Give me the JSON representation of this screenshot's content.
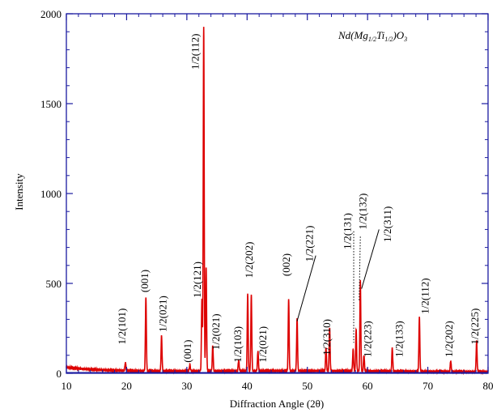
{
  "chart_data": {
    "type": "line",
    "title": "",
    "xlabel": "Diffraction Angle (2θ)",
    "ylabel": "Intensity",
    "xlim": [
      10,
      80
    ],
    "ylim": [
      0,
      2000
    ],
    "xticks": [
      10,
      20,
      30,
      40,
      50,
      60,
      70,
      80
    ],
    "yticks": [
      0,
      500,
      1000,
      1500,
      2000
    ],
    "grid": false,
    "legend": "none",
    "colors": {
      "pattern": "#dd0000",
      "baseline": "#1a1aa0",
      "axes": "#1a1aa0"
    },
    "annotation": {
      "formula": {
        "base1": "Nd(Mg",
        "sub1": "1/2",
        "base2": "Ti",
        "sub2": "1/2",
        "base3": ")O",
        "sub3": "3"
      }
    },
    "peaks": [
      {
        "x": 19.8,
        "y": 45
      },
      {
        "x": 23.2,
        "y": 410
      },
      {
        "x": 25.8,
        "y": 195
      },
      {
        "x": 30.5,
        "y": 35
      },
      {
        "x": 32.5,
        "y": 400
      },
      {
        "x": 32.8,
        "y": 1920
      },
      {
        "x": 33.2,
        "y": 575
      },
      {
        "x": 34.3,
        "y": 140
      },
      {
        "x": 38.6,
        "y": 60
      },
      {
        "x": 40.1,
        "y": 430
      },
      {
        "x": 40.7,
        "y": 420
      },
      {
        "x": 41.8,
        "y": 110
      },
      {
        "x": 46.9,
        "y": 400
      },
      {
        "x": 48.3,
        "y": 290
      },
      {
        "x": 53.1,
        "y": 130
      },
      {
        "x": 53.7,
        "y": 240
      },
      {
        "x": 57.6,
        "y": 120
      },
      {
        "x": 58.1,
        "y": 230
      },
      {
        "x": 58.8,
        "y": 500
      },
      {
        "x": 59.4,
        "y": 90
      },
      {
        "x": 64.1,
        "y": 130
      },
      {
        "x": 68.6,
        "y": 300
      },
      {
        "x": 73.8,
        "y": 60
      },
      {
        "x": 78.1,
        "y": 170
      }
    ],
    "labels": [
      {
        "text": "1/2(101)",
        "x": 19.4,
        "y": 160
      },
      {
        "text": "(001)",
        "x": 23.2,
        "y": 450
      },
      {
        "text": "1/2(021)",
        "x": 26.2,
        "y": 230
      },
      {
        "text": "(001)",
        "x": 30.3,
        "y": 60
      },
      {
        "text": "1/2(121)",
        "x": 31.9,
        "y": 420
      },
      {
        "text": "1/2(112)",
        "x": 31.6,
        "y": 1690
      },
      {
        "text": "1/2(021)",
        "x": 35.0,
        "y": 130
      },
      {
        "text": "1/2(103)",
        "x": 38.6,
        "y": 60
      },
      {
        "text": "1/2(202)",
        "x": 40.5,
        "y": 530
      },
      {
        "text": "1/2(021)",
        "x": 42.8,
        "y": 60
      },
      {
        "text": "(002)",
        "x": 46.7,
        "y": 540
      },
      {
        "text": "1/2(221)",
        "x": 50.5,
        "y": 620
      },
      {
        "text": "1/2(310)",
        "x": 53.4,
        "y": 100
      },
      {
        "text": "1/2(131)",
        "x": 56.8,
        "y": 690
      },
      {
        "text": "1/2(132)",
        "x": 59.4,
        "y": 800
      },
      {
        "text": "1/2(223)",
        "x": 60.2,
        "y": 90
      },
      {
        "text": "1/2(311)",
        "x": 63.5,
        "y": 730
      },
      {
        "text": "1/2(133)",
        "x": 65.4,
        "y": 90
      },
      {
        "text": "1/2(112)",
        "x": 69.7,
        "y": 330
      },
      {
        "text": "1/2(202)",
        "x": 73.7,
        "y": 90
      },
      {
        "text": "1/2(225)",
        "x": 78.0,
        "y": 160
      }
    ],
    "leader_lines": [
      {
        "from": [
          51.4,
          655
        ],
        "to": [
          48.3,
          290
        ],
        "style": "solid"
      },
      {
        "from": [
          57.7,
          790
        ],
        "to": [
          57.7,
          170
        ],
        "style": "dotted"
      },
      {
        "from": [
          58.8,
          760
        ],
        "to": [
          58.6,
          400
        ],
        "style": "dotted"
      },
      {
        "from": [
          61.9,
          800
        ],
        "to": [
          59.0,
          470
        ],
        "style": "solid"
      }
    ]
  }
}
